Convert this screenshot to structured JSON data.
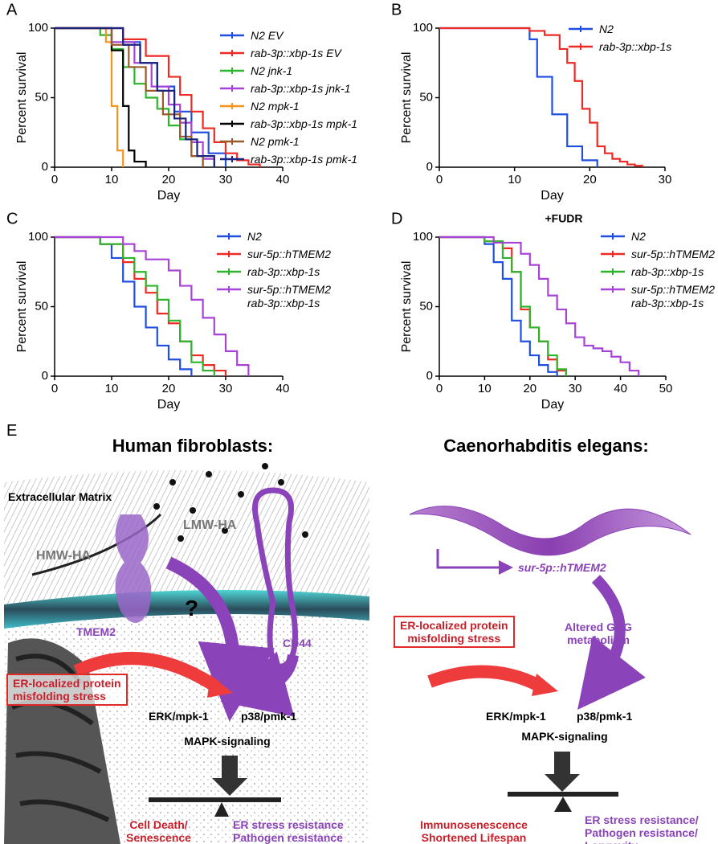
{
  "chart_data": [
    {
      "type": "line",
      "panel": "A",
      "xlabel": "Day",
      "ylabel": "Percent survival",
      "xlim": [
        0,
        40
      ],
      "xticks": [
        0,
        10,
        20,
        30,
        40
      ],
      "ylim": [
        0,
        100
      ],
      "yticks": [
        0,
        50,
        100
      ],
      "series": [
        {
          "name": "N2 EV",
          "color": "#1f4fe0",
          "x": [
            0,
            12,
            12,
            15,
            15,
            18,
            18,
            21,
            21,
            24,
            24,
            27,
            27,
            30,
            30
          ],
          "values": [
            100,
            100,
            90,
            90,
            75,
            75,
            58,
            58,
            40,
            40,
            25,
            25,
            10,
            10,
            0
          ]
        },
        {
          "name": "rab-3p::xbp-1s EV",
          "color": "#ee2a24",
          "x": [
            0,
            12,
            12,
            16,
            16,
            20,
            20,
            22,
            22,
            24,
            24,
            26,
            26,
            28,
            28,
            30,
            30,
            32,
            32,
            34,
            34,
            36,
            36
          ],
          "values": [
            100,
            100,
            92,
            92,
            80,
            80,
            65,
            65,
            52,
            52,
            40,
            40,
            28,
            28,
            18,
            18,
            10,
            10,
            5,
            5,
            2,
            2,
            0
          ]
        },
        {
          "name": "N2 jnk-1",
          "color": "#2db52d",
          "x": [
            0,
            8,
            8,
            10,
            10,
            12,
            12,
            14,
            14,
            16,
            16,
            18,
            18,
            20,
            20,
            22,
            22,
            24,
            24,
            26,
            26
          ],
          "values": [
            100,
            100,
            95,
            95,
            85,
            85,
            72,
            72,
            60,
            60,
            50,
            50,
            42,
            42,
            30,
            30,
            20,
            20,
            8,
            8,
            0
          ]
        },
        {
          "name": "rab-3p::xbp-1s jnk-1",
          "color": "#a843d8",
          "x": [
            0,
            10,
            10,
            14,
            14,
            17,
            17,
            20,
            20,
            22,
            22,
            24,
            24,
            26,
            26,
            28,
            28
          ],
          "values": [
            100,
            100,
            90,
            90,
            75,
            75,
            58,
            58,
            45,
            45,
            32,
            32,
            18,
            18,
            6,
            6,
            0
          ]
        },
        {
          "name": "N2 mpk-1",
          "color": "#f7941d",
          "x": [
            0,
            9,
            9,
            10,
            10,
            11,
            11,
            12,
            12
          ],
          "values": [
            100,
            100,
            90,
            90,
            44,
            44,
            12,
            12,
            0
          ]
        },
        {
          "name": "rab-3p::xbp-1s mpk-1",
          "color": "#000000",
          "x": [
            0,
            10,
            10,
            12,
            12,
            13,
            13,
            14,
            14,
            16,
            16
          ],
          "values": [
            100,
            100,
            84,
            84,
            44,
            44,
            12,
            12,
            4,
            4,
            0
          ]
        },
        {
          "name": "N2 pmk-1",
          "color": "#9c5a2a",
          "x": [
            0,
            10,
            10,
            13,
            13,
            16,
            16,
            19,
            19,
            22,
            22,
            24,
            24,
            26,
            26
          ],
          "values": [
            100,
            100,
            88,
            88,
            72,
            72,
            55,
            55,
            38,
            38,
            22,
            22,
            8,
            8,
            0
          ]
        },
        {
          "name": "rab-3p::xbp-1s pmk-1",
          "color": "#1a237e",
          "x": [
            0,
            12,
            12,
            15,
            15,
            18,
            18,
            21,
            21,
            23,
            23,
            25,
            25,
            28,
            28
          ],
          "values": [
            100,
            100,
            88,
            88,
            75,
            75,
            55,
            55,
            35,
            35,
            20,
            20,
            8,
            8,
            0
          ]
        }
      ]
    },
    {
      "type": "line",
      "panel": "B",
      "xlabel": "Day",
      "ylabel": "Percent survival",
      "xlim": [
        0,
        30
      ],
      "xticks": [
        0,
        10,
        20,
        30
      ],
      "ylim": [
        0,
        100
      ],
      "yticks": [
        0,
        50,
        100
      ],
      "series": [
        {
          "name": "N2",
          "color": "#1f4fe0",
          "x": [
            0,
            12,
            12,
            13,
            13,
            15,
            15,
            17,
            17,
            19,
            19,
            21,
            21
          ],
          "values": [
            100,
            100,
            92,
            92,
            65,
            65,
            38,
            38,
            15,
            15,
            5,
            5,
            0
          ]
        },
        {
          "name": "rab-3p::xbp-1s",
          "color": "#ee2a24",
          "x": [
            0,
            12,
            12,
            14,
            14,
            16,
            16,
            17,
            17,
            18,
            18,
            19,
            19,
            20,
            20,
            21,
            21,
            22,
            22,
            23,
            23,
            24,
            24,
            25,
            25,
            26,
            26,
            27,
            27
          ],
          "values": [
            100,
            100,
            98,
            98,
            95,
            95,
            85,
            85,
            75,
            75,
            62,
            62,
            42,
            42,
            32,
            32,
            15,
            15,
            10,
            10,
            6,
            6,
            4,
            4,
            2,
            2,
            1,
            1,
            0
          ]
        }
      ]
    },
    {
      "type": "line",
      "panel": "C",
      "xlabel": "Day",
      "ylabel": "Percent survival",
      "xlim": [
        0,
        40
      ],
      "xticks": [
        0,
        10,
        20,
        30,
        40
      ],
      "ylim": [
        0,
        100
      ],
      "yticks": [
        0,
        50,
        100
      ],
      "series": [
        {
          "name": "N2",
          "color": "#1f4fe0",
          "x": [
            0,
            8,
            8,
            10,
            10,
            12,
            12,
            14,
            14,
            16,
            16,
            18,
            18,
            20,
            20,
            22,
            22,
            24,
            24
          ],
          "values": [
            100,
            100,
            95,
            95,
            85,
            85,
            68,
            68,
            50,
            50,
            35,
            35,
            22,
            22,
            12,
            12,
            5,
            5,
            0
          ]
        },
        {
          "name": "sur-5p::hTMEM2",
          "color": "#ee2a24",
          "x": [
            0,
            8,
            8,
            12,
            12,
            14,
            14,
            16,
            16,
            18,
            18,
            20,
            20,
            22,
            22,
            24,
            24,
            26,
            26,
            28,
            28,
            30,
            30
          ],
          "values": [
            100,
            100,
            95,
            95,
            82,
            82,
            70,
            70,
            60,
            60,
            45,
            45,
            38,
            38,
            25,
            25,
            15,
            15,
            8,
            8,
            4,
            4,
            0
          ]
        },
        {
          "name": "rab-3p::xbp-1s",
          "color": "#2db52d",
          "x": [
            0,
            8,
            8,
            12,
            12,
            14,
            14,
            16,
            16,
            18,
            18,
            20,
            20,
            22,
            22,
            24,
            24,
            26,
            26,
            28,
            28
          ],
          "values": [
            100,
            100,
            95,
            95,
            85,
            85,
            75,
            75,
            65,
            65,
            55,
            55,
            40,
            40,
            25,
            25,
            10,
            10,
            4,
            4,
            0
          ]
        },
        {
          "name": "sur-5p::hTMEM2\nrab-3p::xbp-1s",
          "color": "#a843d8",
          "x": [
            0,
            12,
            12,
            14,
            14,
            16,
            16,
            20,
            20,
            22,
            22,
            24,
            24,
            26,
            26,
            28,
            28,
            30,
            30,
            32,
            32,
            34,
            34
          ],
          "values": [
            100,
            100,
            95,
            95,
            90,
            90,
            84,
            84,
            76,
            76,
            65,
            65,
            55,
            55,
            42,
            42,
            30,
            30,
            18,
            18,
            8,
            8,
            0
          ]
        }
      ]
    },
    {
      "type": "line",
      "panel": "D",
      "title": "+FUDR",
      "xlabel": "Day",
      "ylabel": "Percent survival",
      "xlim": [
        0,
        50
      ],
      "xticks": [
        0,
        10,
        20,
        30,
        40,
        50
      ],
      "ylim": [
        0,
        100
      ],
      "yticks": [
        0,
        50,
        100
      ],
      "series": [
        {
          "name": "N2",
          "color": "#1f4fe0",
          "x": [
            0,
            10,
            10,
            12,
            12,
            14,
            14,
            16,
            16,
            18,
            18,
            20,
            20,
            22,
            22,
            24,
            24,
            26,
            26
          ],
          "values": [
            100,
            100,
            95,
            95,
            82,
            82,
            70,
            70,
            40,
            40,
            25,
            25,
            15,
            15,
            8,
            8,
            3,
            3,
            0
          ]
        },
        {
          "name": "sur-5p::hTMEM2",
          "color": "#ee2a24",
          "x": [
            0,
            10,
            10,
            14,
            14,
            16,
            16,
            18,
            18,
            20,
            20,
            22,
            22,
            24,
            24,
            26,
            26,
            28,
            28
          ],
          "values": [
            100,
            100,
            97,
            97,
            92,
            92,
            75,
            75,
            48,
            48,
            35,
            35,
            25,
            25,
            12,
            12,
            4,
            4,
            0
          ]
        },
        {
          "name": "rab-3p::xbp-1s",
          "color": "#2db52d",
          "x": [
            0,
            10,
            10,
            14,
            14,
            16,
            16,
            18,
            18,
            20,
            20,
            22,
            22,
            24,
            24,
            26,
            26,
            28,
            28
          ],
          "values": [
            100,
            100,
            97,
            97,
            85,
            85,
            75,
            75,
            50,
            50,
            35,
            35,
            25,
            25,
            15,
            15,
            5,
            5,
            0
          ]
        },
        {
          "name": "sur-5p::hTMEM2\nrab-3p::xbp-1s",
          "color": "#a843d8",
          "x": [
            0,
            12,
            12,
            18,
            18,
            20,
            20,
            22,
            22,
            24,
            24,
            26,
            26,
            28,
            28,
            30,
            30,
            32,
            32,
            34,
            34,
            36,
            36,
            38,
            38,
            40,
            40,
            42,
            42,
            44,
            44
          ],
          "values": [
            100,
            100,
            96,
            96,
            88,
            88,
            80,
            80,
            70,
            70,
            58,
            58,
            48,
            48,
            38,
            38,
            28,
            28,
            22,
            22,
            20,
            20,
            18,
            18,
            14,
            14,
            10,
            10,
            4,
            4,
            0
          ]
        }
      ]
    }
  ],
  "diagram": {
    "panel": "E",
    "left": {
      "title": "Human fibroblasts:",
      "ecm": "Extracellular Matrix",
      "hmw": "HMW-HA",
      "lmw": "LMW-HA",
      "tmem2": "TMEM2",
      "cd44": "CD44",
      "question": "?",
      "stress": "ER-localized protein\nmisfolding stress",
      "erk": "ERK/mpk-1",
      "p38": "p38/pmk-1",
      "mapk": "MAPK-signaling",
      "bad": "Cell Death/\nSenescence",
      "good": "ER stress resistance\nPathogen resistance"
    },
    "right": {
      "title": "Caenorhabditis elegans:",
      "transgene": "sur-5p::hTMEM2",
      "gag": "Altered GAG\nmetabolism",
      "stress": "ER-localized protein\nmisfolding stress",
      "erk": "ERK/mpk-1",
      "p38": "p38/pmk-1",
      "mapk": "MAPK-signaling",
      "bad": "Immunosenescence\nShortened Lifespan",
      "good": "ER stress resistance/\nPathogen resistance/\nLongevity"
    }
  }
}
